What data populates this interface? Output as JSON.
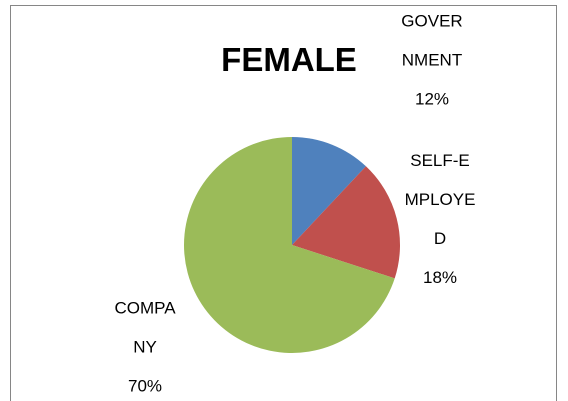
{
  "chart_data": {
    "type": "pie",
    "title": "FEMALE",
    "categories": [
      "GOVERNMENT",
      "SELF-EMPLOYED",
      "COMPANY"
    ],
    "values": [
      12,
      18,
      70
    ],
    "value_labels": [
      "12%",
      "18%",
      "70%"
    ],
    "colors": [
      "#4f81bd",
      "#c0504d",
      "#9bbb59"
    ]
  }
}
